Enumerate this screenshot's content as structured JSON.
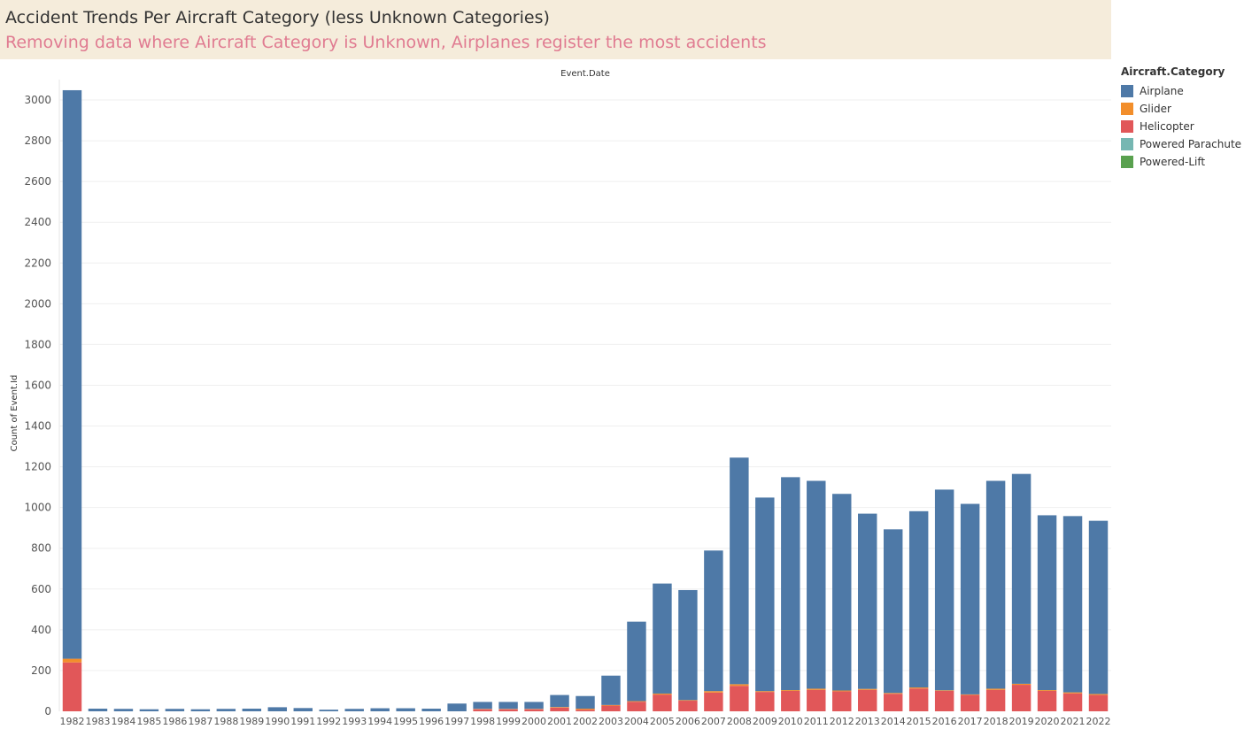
{
  "header": {
    "title": "Accident Trends Per Aircraft Category (less Unknown Categories)",
    "subtitle": "Removing data where Aircraft Category is Unknown, Airplanes register the most accidents"
  },
  "legend": {
    "title": "Aircraft.Category",
    "items": [
      {
        "label": "Airplane",
        "color": "#4e79a7"
      },
      {
        "label": "Glider",
        "color": "#f28e2b"
      },
      {
        "label": "Helicopter",
        "color": "#e15759"
      },
      {
        "label": "Powered Parachute",
        "color": "#76b7b2"
      },
      {
        "label": "Powered-Lift",
        "color": "#59a14f"
      }
    ]
  },
  "chart_data": {
    "type": "bar",
    "stacked": true,
    "xlabel": "Event.Date",
    "ylabel": "Count of Event.Id",
    "ylim": [
      0,
      3100
    ],
    "yticks": [
      0,
      200,
      400,
      600,
      800,
      1000,
      1200,
      1400,
      1600,
      1800,
      2000,
      2200,
      2400,
      2600,
      2800,
      3000
    ],
    "grid": true,
    "legend_position": "right",
    "categories": [
      "1982",
      "1983",
      "1984",
      "1985",
      "1986",
      "1987",
      "1988",
      "1989",
      "1990",
      "1991",
      "1992",
      "1993",
      "1994",
      "1995",
      "1996",
      "1997",
      "1998",
      "1999",
      "2000",
      "2001",
      "2002",
      "2003",
      "2004",
      "2005",
      "2006",
      "2007",
      "2008",
      "2009",
      "2010",
      "2011",
      "2012",
      "2013",
      "2014",
      "2015",
      "2016",
      "2017",
      "2018",
      "2019",
      "2020",
      "2021",
      "2022"
    ],
    "series": [
      {
        "name": "Helicopter",
        "color": "#e15759",
        "values": [
          240,
          0,
          0,
          0,
          0,
          0,
          0,
          0,
          0,
          0,
          0,
          0,
          0,
          0,
          0,
          0,
          10,
          10,
          10,
          18,
          8,
          28,
          47,
          82,
          52,
          92,
          125,
          95,
          100,
          105,
          98,
          105,
          86,
          112,
          100,
          80,
          105,
          130,
          100,
          88,
          80
        ]
      },
      {
        "name": "Glider",
        "color": "#f28e2b",
        "values": [
          18,
          0,
          0,
          0,
          0,
          0,
          0,
          0,
          0,
          0,
          0,
          0,
          0,
          0,
          0,
          0,
          2,
          2,
          2,
          3,
          5,
          3,
          3,
          5,
          3,
          7,
          8,
          4,
          4,
          6,
          4,
          5,
          4,
          5,
          3,
          3,
          6,
          5,
          4,
          5,
          5
        ]
      },
      {
        "name": "Powered Parachute",
        "color": "#76b7b2",
        "values": [
          0,
          0,
          0,
          0,
          0,
          0,
          0,
          0,
          0,
          0,
          0,
          0,
          0,
          0,
          0,
          0,
          0,
          0,
          0,
          0,
          0,
          0,
          0,
          0,
          0,
          0,
          0,
          0,
          0,
          0,
          0,
          0,
          0,
          0,
          0,
          0,
          0,
          0,
          0,
          0,
          0
        ]
      },
      {
        "name": "Powered-Lift",
        "color": "#59a14f",
        "values": [
          0,
          0,
          0,
          0,
          0,
          0,
          0,
          0,
          0,
          0,
          0,
          0,
          0,
          0,
          0,
          0,
          0,
          0,
          0,
          0,
          0,
          0,
          0,
          0,
          0,
          0,
          0,
          0,
          0,
          0,
          0,
          0,
          0,
          0,
          0,
          0,
          0,
          0,
          0,
          0,
          0
        ]
      },
      {
        "name": "Airplane",
        "color": "#4e79a7",
        "values": [
          2790,
          13,
          12,
          10,
          12,
          10,
          12,
          13,
          20,
          16,
          8,
          12,
          15,
          15,
          13,
          38,
          34,
          34,
          34,
          59,
          62,
          144,
          390,
          540,
          540,
          690,
          1112,
          950,
          1045,
          1020,
          965,
          860,
          803,
          865,
          985,
          935,
          1020,
          1030,
          858,
          865,
          850
        ]
      }
    ]
  }
}
